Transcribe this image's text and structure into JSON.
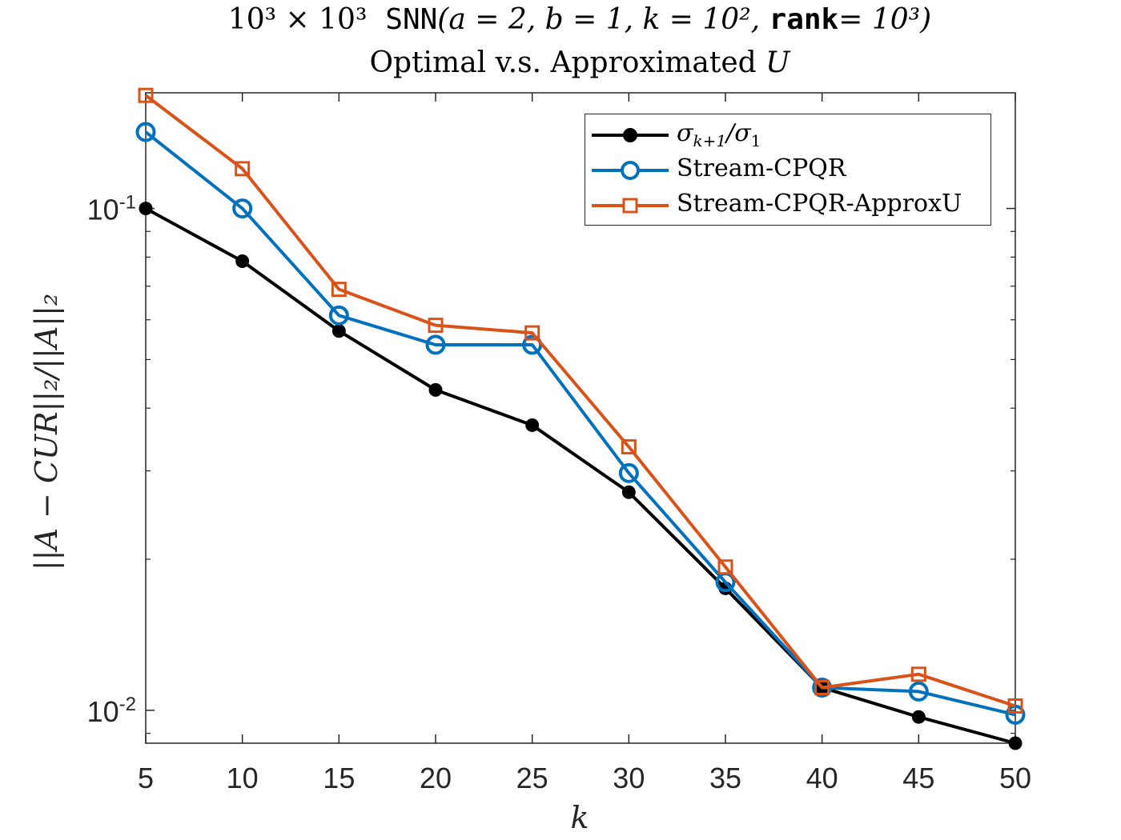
{
  "chart_data": {
    "type": "line",
    "title_line1_math1": "10³ × 10³",
    "title_line1_mono1": "SNN",
    "title_line1_math2": "(a = 2, b = 1, k = 10², ",
    "title_line1_mono2": "rank",
    "title_line1_math3": "= 10³)",
    "title_line2_text": "Optimal v.s. Approximated ",
    "title_line2_math": "U",
    "xlabel": "k",
    "ylabel": "||A − CUR||₂/||A||₂",
    "yscale": "log",
    "xlim": [
      5,
      50
    ],
    "ylim": [
      0.0086,
      0.17
    ],
    "x": [
      5,
      10,
      15,
      20,
      25,
      30,
      35,
      40,
      45,
      50
    ],
    "xticks": [
      "5",
      "10",
      "15",
      "20",
      "25",
      "30",
      "35",
      "40",
      "45",
      "50"
    ],
    "yticks": [
      {
        "value": 0.1,
        "base": "10",
        "exp": "-1"
      },
      {
        "value": 0.01,
        "base": "10",
        "exp": "-2"
      }
    ],
    "grid": false,
    "legend_position": "top-right",
    "series": [
      {
        "name": "σ_{k+1}/σ_1",
        "legend_main": "σ",
        "legend_sub1": "k+1",
        "legend_mid": "/σ",
        "legend_sub2": "1",
        "color": "#000000",
        "marker": "filled-circle",
        "values": [
          0.1,
          0.0785,
          0.057,
          0.0435,
          0.037,
          0.0272,
          0.0175,
          0.0111,
          0.0097,
          0.0086
        ]
      },
      {
        "name": "Stream-CPQR",
        "color": "#0072BD",
        "marker": "open-circle",
        "values": [
          0.142,
          0.1,
          0.0612,
          0.0535,
          0.0535,
          0.0297,
          0.018,
          0.0111,
          0.0109,
          0.0098
        ]
      },
      {
        "name": "Stream-CPQR-ApproxU",
        "color": "#D95319",
        "marker": "open-square",
        "values": [
          0.168,
          0.12,
          0.069,
          0.0585,
          0.0565,
          0.0335,
          0.0193,
          0.0111,
          0.0118,
          0.0102
        ]
      }
    ]
  }
}
